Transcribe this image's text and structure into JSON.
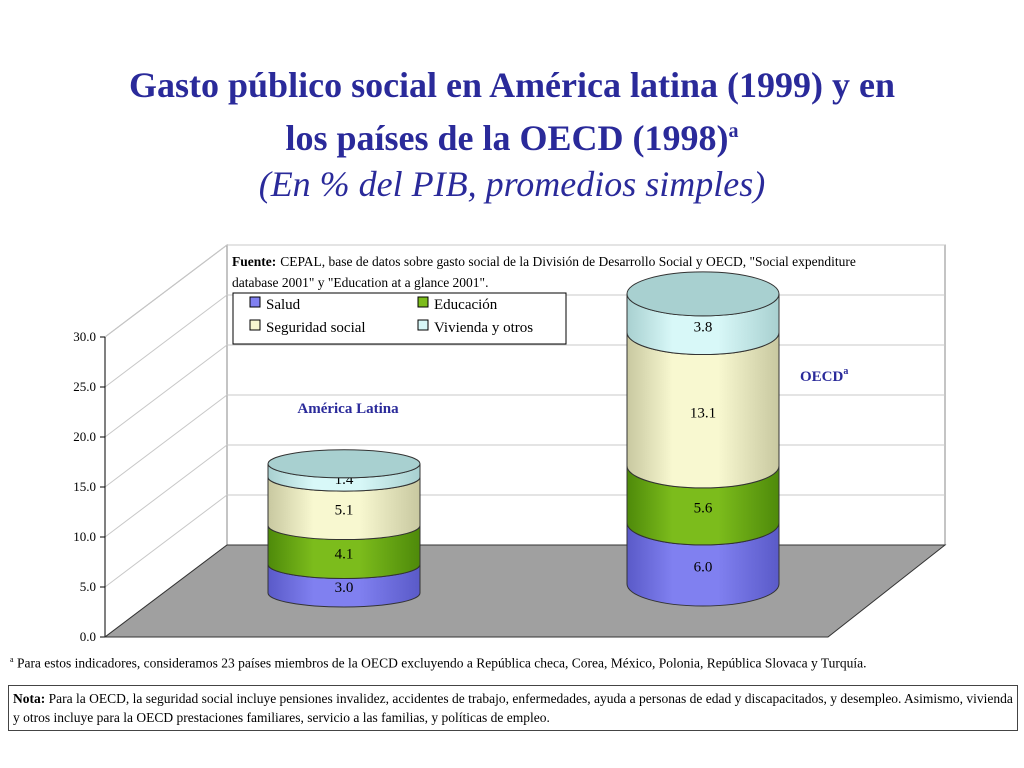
{
  "title": {
    "line1": "Gasto público social en América latina (1999) y en",
    "line2": "los países de la OECD (1998)",
    "line2_sup": "a",
    "line3": "(En % del PIB, promedios simples)"
  },
  "source": {
    "label": "Fuente:",
    "line1": "CEPAL, base de datos sobre gasto social de la División de Desarrollo Social y OECD, \"Social expenditure",
    "line2": "database 2001\" y \"Education at a glance 2001\"."
  },
  "footnote": {
    "sup": "a",
    "text": "Para estos indicadores, consideramos 23 países miembros de la OECD excluyendo a República checa, Corea, México, Polonia, República Slovaca y Turquía."
  },
  "note": {
    "label": "Nota:",
    "text": "Para la OECD, la seguridad social incluye pensiones  invalidez, accidentes de trabajo, enfermedades, ayuda a personas de edad y discapacitados, y desempleo. Asimismo, vivienda y otros incluye para la OECD prestaciones familiares, servicio a las familias, y políticas de empleo."
  },
  "chart_data": {
    "type": "bar",
    "stacked": true,
    "style": "3d-cylinder",
    "categories": [
      "América Latina",
      "OECD"
    ],
    "category_sup": [
      "",
      "a"
    ],
    "series": [
      {
        "name": "Salud",
        "values": [
          3.0,
          6.0
        ],
        "color": "#8080f0",
        "dark": "#5a5ac8"
      },
      {
        "name": "Educación",
        "values": [
          4.1,
          5.6
        ],
        "color": "#7cbc1c",
        "dark": "#4e8a0a"
      },
      {
        "name": "Seguridad social",
        "values": [
          5.1,
          13.1
        ],
        "color": "#f8f8d0",
        "dark": "#c8c8a0"
      },
      {
        "name": "Vivienda y otros",
        "values": [
          1.4,
          3.8
        ],
        "color": "#d8f8f8",
        "dark": "#a8d0d0"
      }
    ],
    "value_labels": [
      [
        "3.0",
        "4.1",
        "5.1",
        "1.4"
      ],
      [
        "6.0",
        "5.6",
        "13.1",
        "3.8"
      ]
    ],
    "yticks": [
      "0.0",
      "5.0",
      "10.0",
      "15.0",
      "20.0",
      "25.0",
      "30.0"
    ],
    "ylim": [
      0,
      30
    ],
    "grid": true,
    "legend_position": "top-left",
    "colors": {
      "floor": "#a0a0a0",
      "wall": "#ffffff",
      "grid": "#c8c8c8",
      "top_cap": "#a8d0d0"
    }
  }
}
